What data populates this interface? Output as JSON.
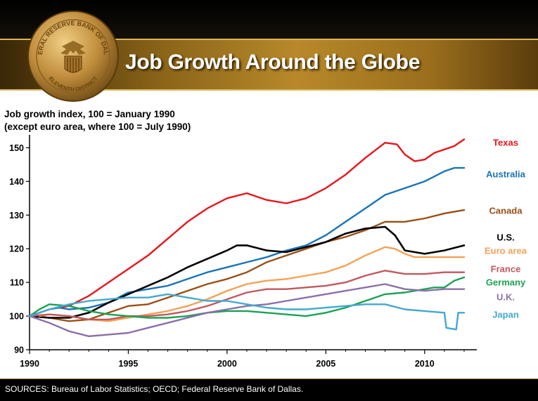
{
  "header": {
    "title": "Job Growth Around the Globe"
  },
  "footer": {
    "sources": "SOURCES: Bureau of Labor Statistics; OECD; Federal Reserve Bank of Dallas."
  },
  "seal": {
    "icon": "federal-reserve-seal-icon",
    "text_top": "FEDERAL RESERVE BANK OF DALLAS",
    "text_bottom": "ELEVENTH DISTRICT"
  },
  "colors": {
    "title_bar": "#9a6e1c",
    "background": "#ffffff",
    "footer": "#000000"
  },
  "chart_data": {
    "type": "line",
    "ylabel_line1": "Job growth index, 100 = January 1990",
    "ylabel_line2": "(except euro area, where 100 = July 1990)",
    "xlim": [
      1990,
      2012.5
    ],
    "ylim": [
      90,
      153
    ],
    "x_ticks": [
      1990,
      1995,
      2000,
      2005,
      2010
    ],
    "y_ticks": [
      90,
      100,
      110,
      120,
      130,
      140,
      150
    ],
    "grid": false,
    "legend": "right-inline",
    "series": [
      {
        "name": "Texas",
        "color": "#e8151b",
        "x": [
          1990,
          1991,
          1992,
          1993,
          1994,
          1995,
          1996,
          1997,
          1998,
          1999,
          2000,
          2001,
          2002,
          2003,
          2004,
          2005,
          2006,
          2007,
          2008,
          2008.6,
          2009,
          2009.5,
          2010,
          2010.5,
          2011,
          2011.5,
          2012
        ],
        "y": [
          100,
          102,
          103,
          106,
          110,
          114,
          118,
          123,
          128,
          132,
          135,
          136.5,
          134.5,
          133.5,
          135,
          138,
          142,
          147,
          151.5,
          151,
          148,
          146,
          146.5,
          148.5,
          149.5,
          150.5,
          152.5
        ]
      },
      {
        "name": "Australia",
        "color": "#1a73b8",
        "x": [
          1990,
          1991,
          1991.5,
          1992,
          1993,
          1994,
          1995,
          1996,
          1997,
          1998,
          1999,
          2000,
          2001,
          2002,
          2003,
          2004,
          2005,
          2006,
          2007,
          2008,
          2009,
          2010,
          2011,
          2011.5,
          2012
        ],
        "y": [
          100,
          102,
          102.5,
          102,
          102.5,
          104,
          107,
          108,
          109,
          111,
          113,
          114.5,
          116,
          117.5,
          119.5,
          121,
          124,
          128,
          132,
          136,
          138,
          140,
          143,
          144,
          144
        ]
      },
      {
        "name": "Canada",
        "color": "#9a4f16",
        "x": [
          1990,
          1991,
          1992,
          1993,
          1994,
          1995,
          1996,
          1997,
          1998,
          1999,
          2000,
          2001,
          2002,
          2003,
          2004,
          2005,
          2006,
          2007,
          2008,
          2009,
          2010,
          2011,
          2012
        ],
        "y": [
          100,
          99.5,
          98.5,
          99,
          101,
          103,
          103.5,
          105.5,
          107.5,
          109.5,
          111,
          113,
          116,
          118,
          120,
          122,
          123.5,
          125.5,
          128,
          128,
          129,
          130.5,
          131.5
        ]
      },
      {
        "name": "U.S.",
        "color": "#000000",
        "x": [
          1990,
          1991,
          1992,
          1993,
          1994,
          1995,
          1996,
          1997,
          1998,
          1999,
          2000,
          2000.5,
          2001,
          2002,
          2003,
          2004,
          2005,
          2006,
          2007,
          2008,
          2008.5,
          2009,
          2010,
          2011,
          2012
        ],
        "y": [
          100,
          99.5,
          99.5,
          101,
          104,
          106.5,
          109,
          111.5,
          114.5,
          117,
          119.5,
          121,
          121,
          119.5,
          119,
          120.5,
          122,
          124.5,
          126,
          126.5,
          124,
          119.5,
          118.5,
          119.5,
          121
        ]
      },
      {
        "name": "Euro area",
        "color": "#f4a155",
        "x": [
          1990.5,
          1991,
          1992,
          1993,
          1994,
          1995,
          1996,
          1997,
          1998,
          1999,
          2000,
          2001,
          2002,
          2003,
          2004,
          2005,
          2006,
          2007,
          2008,
          2008.5,
          2009,
          2009.5,
          2010,
          2011,
          2012
        ],
        "y": [
          100,
          100.5,
          100,
          99,
          98.5,
          99.5,
          100.5,
          101.5,
          103,
          105,
          107.5,
          109.5,
          110.5,
          111,
          112,
          113,
          115,
          118,
          120.5,
          120,
          118.5,
          117.5,
          117.5,
          117.5,
          117.5
        ]
      },
      {
        "name": "France",
        "color": "#c1595f",
        "x": [
          1990,
          1991,
          1992,
          1993,
          1994,
          1995,
          1996,
          1997,
          1998,
          1999,
          2000,
          2001,
          2002,
          2003,
          2004,
          2005,
          2006,
          2007,
          2008,
          2009,
          2010,
          2011,
          2012
        ],
        "y": [
          100,
          100.5,
          100,
          99,
          99,
          100,
          100,
          100.5,
          101.5,
          103,
          105,
          107,
          108,
          108,
          108.5,
          109,
          110,
          112,
          113.5,
          112.5,
          112.5,
          113,
          113
        ]
      },
      {
        "name": "Germany",
        "color": "#1aa354",
        "x": [
          1990,
          1990.5,
          1991,
          1992,
          1993,
          1994,
          1995,
          1996,
          1997,
          1998,
          1999,
          2000,
          2001,
          2002,
          2003,
          2004,
          2005,
          2006,
          2007,
          2008,
          2009,
          2010,
          2010.5,
          2011,
          2011.5,
          2012
        ],
        "y": [
          100,
          102,
          103.5,
          103,
          101.5,
          100.5,
          100,
          99.5,
          99.5,
          100,
          101,
          101.5,
          101.5,
          101,
          100.5,
          100,
          101,
          102.5,
          104.5,
          106.5,
          107,
          108,
          108.5,
          108.5,
          110.5,
          111.5
        ]
      },
      {
        "name": "U.K.",
        "color": "#8b6fa8",
        "x": [
          1990,
          1991,
          1992,
          1993,
          1994,
          1995,
          1996,
          1997,
          1998,
          1999,
          2000,
          2001,
          2002,
          2003,
          2004,
          2005,
          2006,
          2007,
          2008,
          2009,
          2010,
          2011,
          2012
        ],
        "y": [
          100,
          98,
          95.5,
          94,
          94.5,
          95,
          96.5,
          98,
          99.5,
          101,
          102,
          103,
          103.5,
          104.5,
          105.5,
          106.5,
          107.5,
          108.5,
          109.5,
          108,
          107.5,
          108,
          108
        ]
      },
      {
        "name": "Japan",
        "color": "#45a8cf",
        "x": [
          1990,
          1991,
          1992,
          1993,
          1994,
          1995,
          1996,
          1997,
          1998,
          1999,
          2000,
          2001,
          2002,
          2003,
          2004,
          2005,
          2006,
          2007,
          2008,
          2009,
          2010,
          2011,
          2011.1,
          2011.6,
          2011.7,
          2012
        ],
        "y": [
          100,
          102,
          103.5,
          104.5,
          105,
          105.5,
          105.5,
          106.5,
          105.5,
          104.5,
          104.5,
          103.5,
          102.5,
          102,
          102,
          102.5,
          103,
          103.5,
          103.5,
          102,
          101.5,
          101,
          96.5,
          96,
          101,
          101
        ]
      }
    ]
  }
}
